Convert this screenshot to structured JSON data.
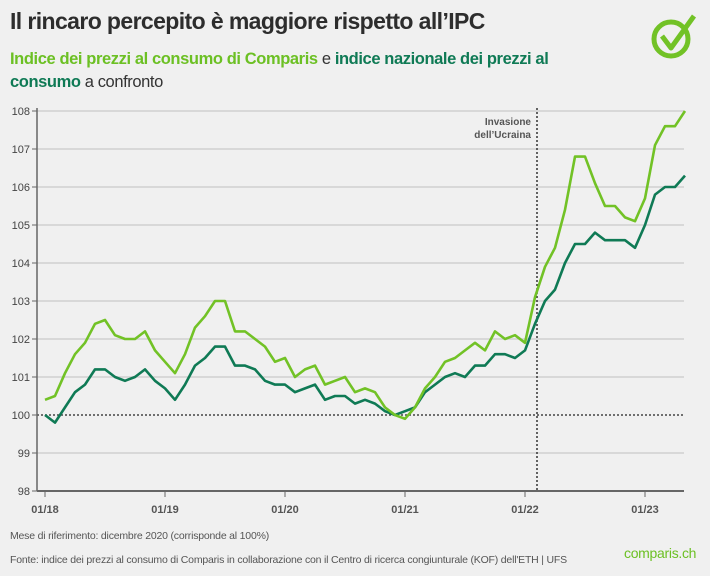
{
  "header": {
    "title": "Il rincaro percepito è maggiore rispetto all’IPC",
    "subtitle_part1": "Indice dei prezzi al consumo di Comparis",
    "subtitle_part2": " e ",
    "subtitle_part3": "indice nazionale dei prezzi al consumo",
    "subtitle_part4": " a confronto"
  },
  "footer": {
    "note": "Mese di riferimento: dicembre 2020 (corrisponde al 100%)",
    "source": "Fonte: indice dei prezzi al consumo di Comparis in collaborazione con il Centro di ricerca congiunturale (KOF) dell'ETH | UFS",
    "brand": "comparis.ch"
  },
  "colors": {
    "comparis": "#72c226",
    "national": "#0f7a55",
    "background": "#f0f0f0"
  },
  "icons": {
    "logo": "check-circle-icon"
  },
  "chart_data": {
    "type": "line",
    "x_start": "01/18",
    "x_end": "05/23",
    "x_ticks": [
      "01/18",
      "01/19",
      "01/20",
      "01/21",
      "01/22",
      "01/23"
    ],
    "ylim": [
      98,
      108
    ],
    "y_ticks": [
      98,
      99,
      100,
      101,
      102,
      103,
      104,
      105,
      106,
      107,
      108
    ],
    "grid": true,
    "reference_line": {
      "value": 100,
      "style": "dotted"
    },
    "annotation": {
      "line1": "Invasione",
      "line2": "dell’Ucraina",
      "x": "02/22"
    },
    "series": [
      {
        "key": "comparis",
        "values": [
          100.4,
          100.5,
          101.1,
          101.6,
          101.9,
          102.4,
          102.5,
          102.1,
          102.0,
          102.0,
          102.2,
          101.7,
          101.4,
          101.1,
          101.6,
          102.3,
          102.6,
          103.0,
          103.0,
          102.2,
          102.2,
          102.0,
          101.8,
          101.4,
          101.5,
          101.0,
          101.2,
          101.3,
          100.8,
          100.9,
          101.0,
          100.6,
          100.7,
          100.6,
          100.2,
          100.0,
          99.9,
          100.2,
          100.7,
          101.0,
          101.4,
          101.5,
          101.7,
          101.9,
          101.7,
          102.2,
          102.0,
          102.1,
          101.9,
          103.1,
          103.9,
          104.4,
          105.4,
          106.8,
          106.8,
          106.1,
          105.5,
          105.5,
          105.2,
          105.1,
          105.7,
          107.1,
          107.6,
          107.6,
          108.0
        ]
      },
      {
        "key": "national",
        "values": [
          100.0,
          99.8,
          100.2,
          100.6,
          100.8,
          101.2,
          101.2,
          101.0,
          100.9,
          101.0,
          101.2,
          100.9,
          100.7,
          100.4,
          100.8,
          101.3,
          101.5,
          101.8,
          101.8,
          101.3,
          101.3,
          101.2,
          100.9,
          100.8,
          100.8,
          100.6,
          100.7,
          100.8,
          100.4,
          100.5,
          100.5,
          100.3,
          100.4,
          100.3,
          100.1,
          100.0,
          100.1,
          100.2,
          100.6,
          100.8,
          101.0,
          101.1,
          101.0,
          101.3,
          101.3,
          101.6,
          101.6,
          101.5,
          101.7,
          102.4,
          103.0,
          103.3,
          104.0,
          104.5,
          104.5,
          104.8,
          104.6,
          104.6,
          104.6,
          104.4,
          105.0,
          105.8,
          106.0,
          106.0,
          106.3
        ]
      }
    ]
  }
}
